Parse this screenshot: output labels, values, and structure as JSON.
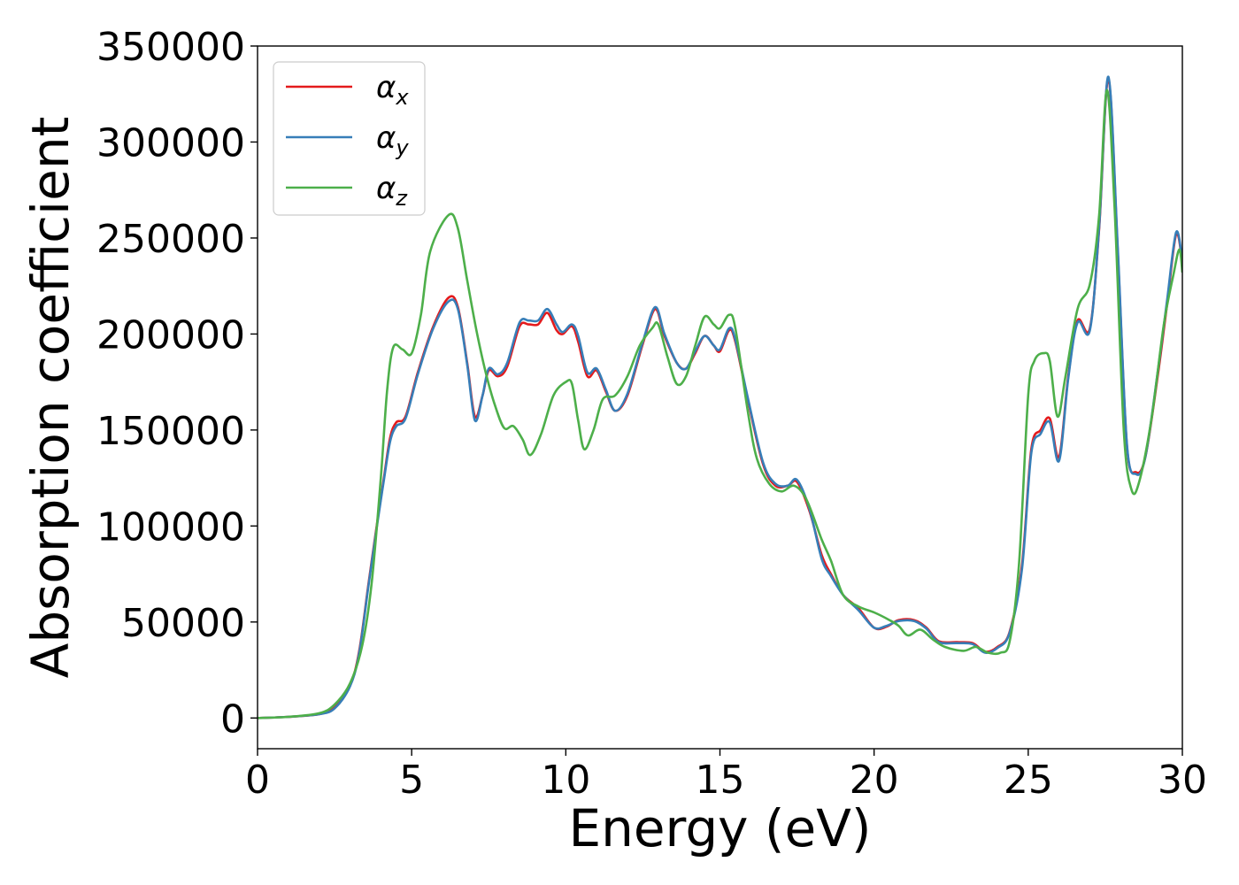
{
  "chart_data": {
    "type": "line",
    "xlabel": "Energy (eV)",
    "ylabel": "Absorption coefficient",
    "xlim": [
      0,
      30
    ],
    "ylim": [
      -16000,
      350000
    ],
    "xticks": [
      0,
      5,
      10,
      15,
      20,
      25,
      30
    ],
    "yticks": [
      0,
      50000,
      100000,
      150000,
      200000,
      250000,
      300000,
      350000
    ],
    "grid": false,
    "legend_position": "top-left",
    "series": [
      {
        "name": "α",
        "subscript": "x",
        "color": "#e41a1c",
        "points": [
          [
            0,
            0
          ],
          [
            1,
            600
          ],
          [
            2,
            2000
          ],
          [
            2.5,
            5500
          ],
          [
            3,
            17000
          ],
          [
            3.3,
            35000
          ],
          [
            3.6,
            70000
          ],
          [
            3.9,
            104000
          ],
          [
            4.1,
            125000
          ],
          [
            4.3,
            146000
          ],
          [
            4.5,
            154000
          ],
          [
            4.8,
            157000
          ],
          [
            5.2,
            180000
          ],
          [
            5.7,
            204000
          ],
          [
            6.2,
            219000
          ],
          [
            6.5,
            214000
          ],
          [
            6.8,
            185000
          ],
          [
            7.05,
            157000
          ],
          [
            7.3,
            168000
          ],
          [
            7.5,
            181000
          ],
          [
            7.8,
            178000
          ],
          [
            8.1,
            183000
          ],
          [
            8.5,
            204000
          ],
          [
            8.8,
            205000
          ],
          [
            9.1,
            205000
          ],
          [
            9.4,
            211000
          ],
          [
            9.7,
            202000
          ],
          [
            9.9,
            200000
          ],
          [
            10.2,
            204000
          ],
          [
            10.4,
            196000
          ],
          [
            10.7,
            178000
          ],
          [
            11.0,
            181000
          ],
          [
            11.3,
            170000
          ],
          [
            11.6,
            160000
          ],
          [
            12.0,
            168000
          ],
          [
            12.5,
            195000
          ],
          [
            12.9,
            213000
          ],
          [
            13.2,
            199000
          ],
          [
            13.6,
            185000
          ],
          [
            13.9,
            182000
          ],
          [
            14.2,
            190000
          ],
          [
            14.5,
            199000
          ],
          [
            14.8,
            194000
          ],
          [
            15.0,
            191000
          ],
          [
            15.3,
            202000
          ],
          [
            15.5,
            196000
          ],
          [
            15.9,
            166000
          ],
          [
            16.4,
            132000
          ],
          [
            16.8,
            121000
          ],
          [
            17.2,
            121000
          ],
          [
            17.5,
            123000
          ],
          [
            17.9,
            108000
          ],
          [
            18.3,
            85000
          ],
          [
            18.6,
            75000
          ],
          [
            19.0,
            64000
          ],
          [
            19.5,
            57000
          ],
          [
            20.0,
            47000
          ],
          [
            20.4,
            47500
          ],
          [
            20.8,
            51000
          ],
          [
            21.3,
            51000
          ],
          [
            21.7,
            47000
          ],
          [
            22.1,
            40000
          ],
          [
            22.7,
            39500
          ],
          [
            23.2,
            39000
          ],
          [
            23.6,
            34500
          ],
          [
            24.0,
            37000
          ],
          [
            24.4,
            45000
          ],
          [
            24.8,
            80000
          ],
          [
            25.1,
            140000
          ],
          [
            25.4,
            150000
          ],
          [
            25.7,
            156000
          ],
          [
            26.0,
            136000
          ],
          [
            26.3,
            178000
          ],
          [
            26.6,
            207000
          ],
          [
            27.0,
            203000
          ],
          [
            27.3,
            255000
          ],
          [
            27.6,
            333000
          ],
          [
            27.9,
            245000
          ],
          [
            28.2,
            142000
          ],
          [
            28.5,
            128000
          ],
          [
            28.8,
            136000
          ],
          [
            29.2,
            178000
          ],
          [
            29.5,
            215000
          ],
          [
            29.8,
            252000
          ],
          [
            30,
            237000
          ]
        ]
      },
      {
        "name": "α",
        "subscript": "y",
        "color": "#377eb8",
        "points": [
          [
            0,
            0
          ],
          [
            1,
            600
          ],
          [
            2,
            2000
          ],
          [
            2.5,
            5000
          ],
          [
            3,
            16500
          ],
          [
            3.3,
            34000
          ],
          [
            3.6,
            69000
          ],
          [
            3.9,
            103000
          ],
          [
            4.1,
            124000
          ],
          [
            4.3,
            144000
          ],
          [
            4.5,
            152000
          ],
          [
            4.8,
            156000
          ],
          [
            5.2,
            179000
          ],
          [
            5.7,
            203000
          ],
          [
            6.2,
            217000
          ],
          [
            6.5,
            213000
          ],
          [
            6.8,
            184000
          ],
          [
            7.05,
            155000
          ],
          [
            7.3,
            168000
          ],
          [
            7.5,
            182000
          ],
          [
            7.8,
            179000
          ],
          [
            8.1,
            185000
          ],
          [
            8.5,
            206000
          ],
          [
            8.8,
            207000
          ],
          [
            9.1,
            207000
          ],
          [
            9.4,
            213000
          ],
          [
            9.7,
            205000
          ],
          [
            9.9,
            201000
          ],
          [
            10.2,
            205000
          ],
          [
            10.4,
            199000
          ],
          [
            10.7,
            180000
          ],
          [
            11.0,
            182000
          ],
          [
            11.3,
            171000
          ],
          [
            11.6,
            160000
          ],
          [
            12.0,
            169000
          ],
          [
            12.5,
            196000
          ],
          [
            12.9,
            214000
          ],
          [
            13.2,
            200000
          ],
          [
            13.6,
            185000
          ],
          [
            13.9,
            182000
          ],
          [
            14.2,
            191000
          ],
          [
            14.5,
            199000
          ],
          [
            14.8,
            194000
          ],
          [
            15.0,
            192000
          ],
          [
            15.3,
            203000
          ],
          [
            15.5,
            197000
          ],
          [
            15.9,
            167000
          ],
          [
            16.4,
            133000
          ],
          [
            16.8,
            122000
          ],
          [
            17.2,
            121000
          ],
          [
            17.5,
            124000
          ],
          [
            17.9,
            109000
          ],
          [
            18.3,
            83000
          ],
          [
            18.6,
            74000
          ],
          [
            19.0,
            64000
          ],
          [
            19.5,
            56000
          ],
          [
            20.0,
            47000
          ],
          [
            20.4,
            48000
          ],
          [
            20.8,
            50500
          ],
          [
            21.3,
            50500
          ],
          [
            21.7,
            46500
          ],
          [
            22.1,
            39500
          ],
          [
            22.7,
            39000
          ],
          [
            23.2,
            38500
          ],
          [
            23.6,
            34000
          ],
          [
            24.0,
            36500
          ],
          [
            24.4,
            44500
          ],
          [
            24.8,
            78000
          ],
          [
            25.1,
            138000
          ],
          [
            25.4,
            148000
          ],
          [
            25.7,
            154000
          ],
          [
            26.0,
            134000
          ],
          [
            26.3,
            177000
          ],
          [
            26.6,
            206000
          ],
          [
            27.0,
            202000
          ],
          [
            27.3,
            256000
          ],
          [
            27.6,
            334000
          ],
          [
            27.9,
            247000
          ],
          [
            28.2,
            143000
          ],
          [
            28.5,
            127000
          ],
          [
            28.8,
            136000
          ],
          [
            29.2,
            180000
          ],
          [
            29.5,
            217000
          ],
          [
            29.8,
            253000
          ],
          [
            30,
            238000
          ]
        ]
      },
      {
        "name": "α",
        "subscript": "z",
        "color": "#4daf4a",
        "points": [
          [
            0,
            0
          ],
          [
            1,
            600
          ],
          [
            2,
            2500
          ],
          [
            2.5,
            7000
          ],
          [
            3,
            18000
          ],
          [
            3.4,
            38000
          ],
          [
            3.7,
            70000
          ],
          [
            4.0,
            125000
          ],
          [
            4.2,
            170000
          ],
          [
            4.4,
            193000
          ],
          [
            4.7,
            192000
          ],
          [
            5.0,
            190000
          ],
          [
            5.3,
            210000
          ],
          [
            5.6,
            243000
          ],
          [
            6.2,
            262000
          ],
          [
            6.5,
            255000
          ],
          [
            6.8,
            228000
          ],
          [
            7.1,
            202000
          ],
          [
            7.4,
            180000
          ],
          [
            7.7,
            163000
          ],
          [
            8.0,
            151000
          ],
          [
            8.3,
            152000
          ],
          [
            8.6,
            145000
          ],
          [
            8.85,
            137000
          ],
          [
            9.2,
            148000
          ],
          [
            9.6,
            168000
          ],
          [
            10.0,
            175000
          ],
          [
            10.2,
            174000
          ],
          [
            10.4,
            155000
          ],
          [
            10.6,
            140000
          ],
          [
            10.9,
            150000
          ],
          [
            11.2,
            166000
          ],
          [
            11.6,
            168000
          ],
          [
            12.0,
            178000
          ],
          [
            12.4,
            194000
          ],
          [
            12.8,
            203000
          ],
          [
            13.0,
            205000
          ],
          [
            13.3,
            188000
          ],
          [
            13.6,
            174000
          ],
          [
            13.9,
            178000
          ],
          [
            14.2,
            194000
          ],
          [
            14.5,
            209000
          ],
          [
            14.8,
            205000
          ],
          [
            15.0,
            203000
          ],
          [
            15.3,
            210000
          ],
          [
            15.5,
            203000
          ],
          [
            15.9,
            160000
          ],
          [
            16.2,
            135000
          ],
          [
            16.6,
            122000
          ],
          [
            17.0,
            118000
          ],
          [
            17.4,
            121000
          ],
          [
            17.8,
            114000
          ],
          [
            18.3,
            93000
          ],
          [
            18.6,
            82000
          ],
          [
            19.0,
            64000
          ],
          [
            19.5,
            58000
          ],
          [
            20.0,
            55000
          ],
          [
            20.5,
            51000
          ],
          [
            20.8,
            48000
          ],
          [
            21.1,
            43000
          ],
          [
            21.5,
            46000
          ],
          [
            21.9,
            41000
          ],
          [
            22.3,
            37000
          ],
          [
            22.9,
            35000
          ],
          [
            23.3,
            37000
          ],
          [
            23.7,
            34000
          ],
          [
            24.1,
            34000
          ],
          [
            24.4,
            40000
          ],
          [
            24.7,
            80000
          ],
          [
            25.0,
            168000
          ],
          [
            25.2,
            186000
          ],
          [
            25.5,
            190000
          ],
          [
            25.7,
            186000
          ],
          [
            25.95,
            157000
          ],
          [
            26.2,
            177000
          ],
          [
            26.6,
            213000
          ],
          [
            27.0,
            226000
          ],
          [
            27.3,
            262000
          ],
          [
            27.55,
            327000
          ],
          [
            27.8,
            266000
          ],
          [
            28.1,
            150000
          ],
          [
            28.35,
            119000
          ],
          [
            28.6,
            123000
          ],
          [
            29.0,
            156000
          ],
          [
            29.4,
            205000
          ],
          [
            29.7,
            230000
          ],
          [
            29.9,
            244000
          ],
          [
            30,
            232000
          ]
        ]
      }
    ]
  }
}
